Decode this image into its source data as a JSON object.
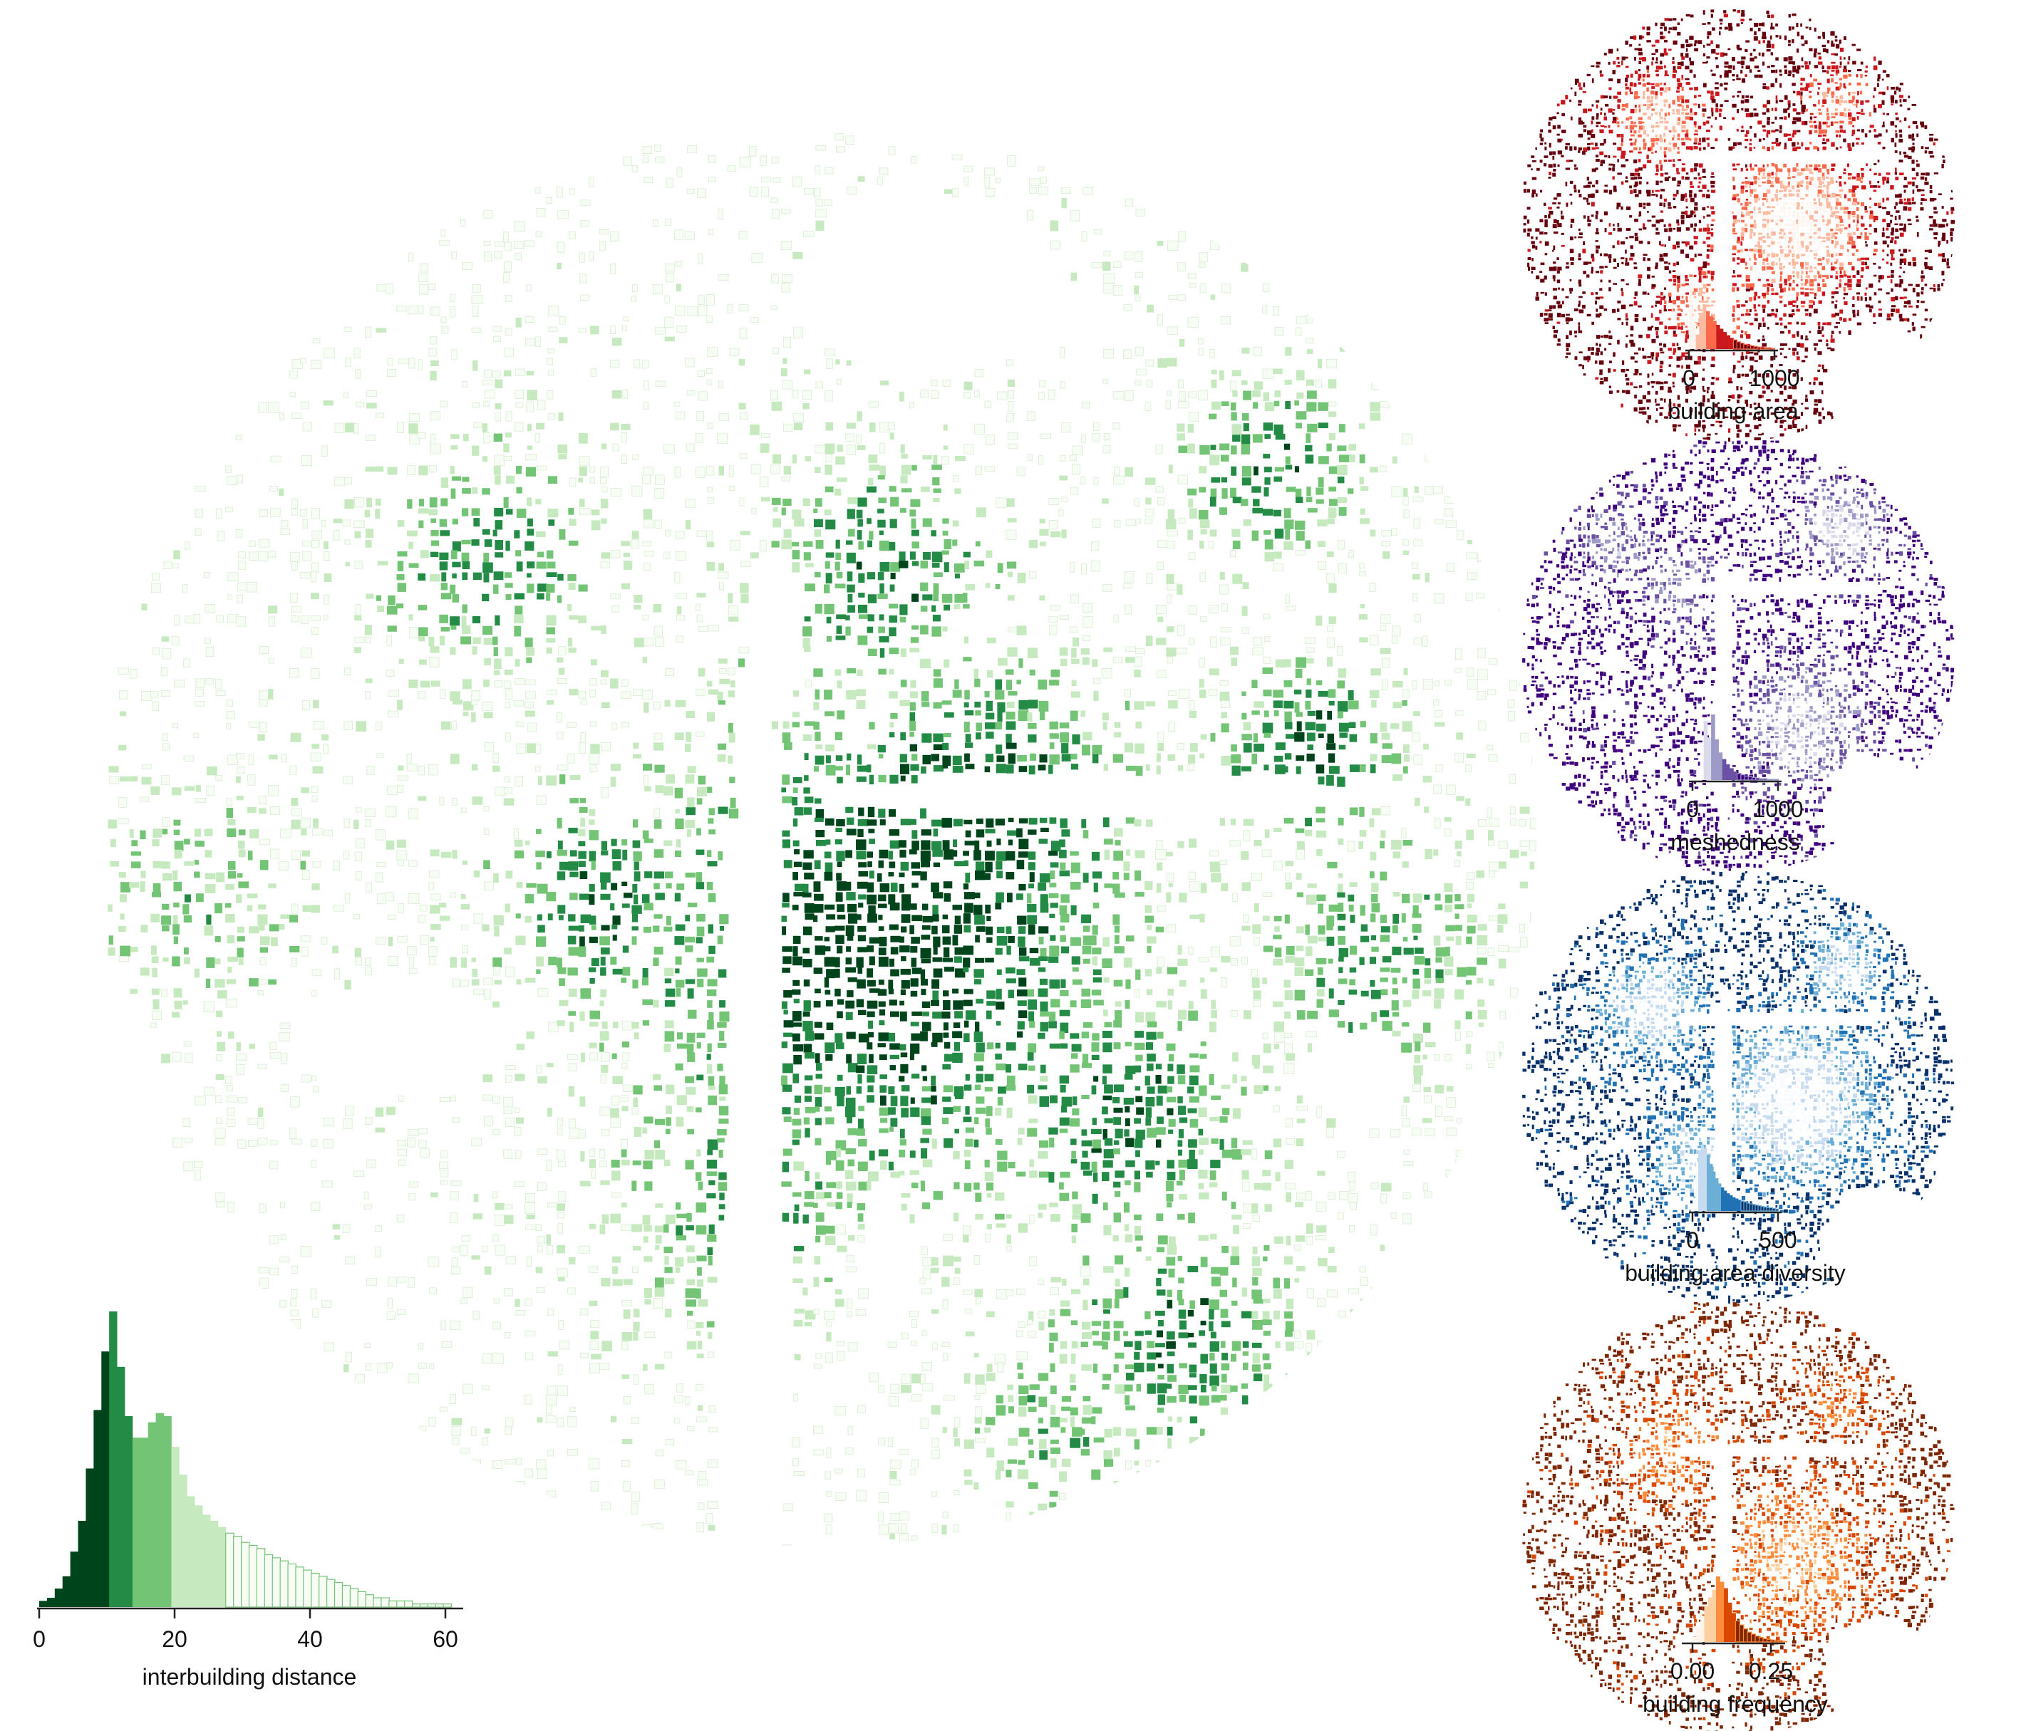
{
  "main_map": {
    "variable": "interbuilding distance",
    "palette": [
      "#00441b",
      "#238b45",
      "#74c476",
      "#c7e9c0",
      "#f7fcf5"
    ],
    "axis_ticks": [
      "0",
      "20",
      "40",
      "60"
    ],
    "histogram": {
      "range": [
        0,
        62
      ],
      "class_breaks": [
        10.5,
        14,
        19.5,
        27.5
      ],
      "values": [
        2,
        3,
        6,
        10,
        18,
        28,
        45,
        64,
        83,
        96,
        78,
        62,
        55,
        55,
        60,
        63,
        62,
        52,
        43,
        36,
        33,
        30,
        28,
        26,
        24,
        23,
        21,
        20,
        19,
        17,
        16,
        15,
        14,
        13,
        12,
        11,
        10,
        9,
        8,
        7,
        6,
        5,
        4,
        3,
        3,
        2,
        2,
        2,
        1,
        1,
        1,
        1,
        1,
        0
      ]
    }
  },
  "small_maps": [
    {
      "variable": "building area",
      "palette": [
        "#fff5f0",
        "#fcbba1",
        "#fb6a4a",
        "#cb181d",
        "#67000d"
      ],
      "axis_ticks": [
        "0",
        "1000"
      ],
      "histogram": {
        "range": [
          0,
          1000
        ],
        "class_breaks": [
          90,
          180,
          300,
          520
        ],
        "values": [
          100,
          40,
          22,
          55,
          68,
          58,
          50,
          43,
          37,
          31,
          26,
          21,
          17,
          14,
          11,
          9,
          7,
          6,
          5,
          4,
          3,
          3,
          2,
          2,
          1
        ]
      }
    },
    {
      "variable": "meshedness",
      "palette": [
        "#fcfbfd",
        "#dadaeb",
        "#9e9ac8",
        "#6a51a3",
        "#3f007d"
      ],
      "axis_ticks": [
        "0",
        "1000"
      ],
      "histogram": {
        "range": [
          0,
          1000
        ],
        "class_breaks": [
          110,
          210,
          330,
          500
        ],
        "values": [
          5,
          20,
          55,
          90,
          65,
          100,
          62,
          42,
          32,
          24,
          18,
          13,
          10,
          8,
          6,
          5,
          4,
          3,
          2,
          2,
          1,
          1,
          1
        ]
      }
    },
    {
      "variable": "building area diversity",
      "palette": [
        "#f7fbff",
        "#c6dbef",
        "#6baed6",
        "#2171b5",
        "#08306b"
      ],
      "axis_ticks": [
        "0",
        "500"
      ],
      "histogram": {
        "range": [
          0,
          500
        ],
        "class_breaks": [
          40,
          90,
          170,
          290
        ],
        "values": [
          20,
          60,
          92,
          100,
          96,
          86,
          72,
          60,
          50,
          42,
          36,
          31,
          27,
          24,
          21,
          19,
          17,
          15,
          14,
          12,
          11,
          10,
          9,
          8,
          7,
          6,
          5,
          5,
          4,
          3
        ]
      }
    },
    {
      "variable": "building frequency",
      "palette": [
        "#fff5eb",
        "#fdd0a2",
        "#fd8d3c",
        "#d94801",
        "#7f2704"
      ],
      "axis_ticks": [
        "0.00",
        "0.25"
      ],
      "histogram": {
        "range": [
          0,
          0.3
        ],
        "class_breaks": [
          0.04,
          0.075,
          0.1,
          0.14
        ],
        "values": [
          8,
          22,
          40,
          55,
          68,
          80,
          100,
          92,
          82,
          60,
          44,
          32,
          26,
          20,
          15,
          12,
          9,
          7,
          5,
          4,
          3,
          2,
          2,
          1
        ]
      }
    }
  ]
}
